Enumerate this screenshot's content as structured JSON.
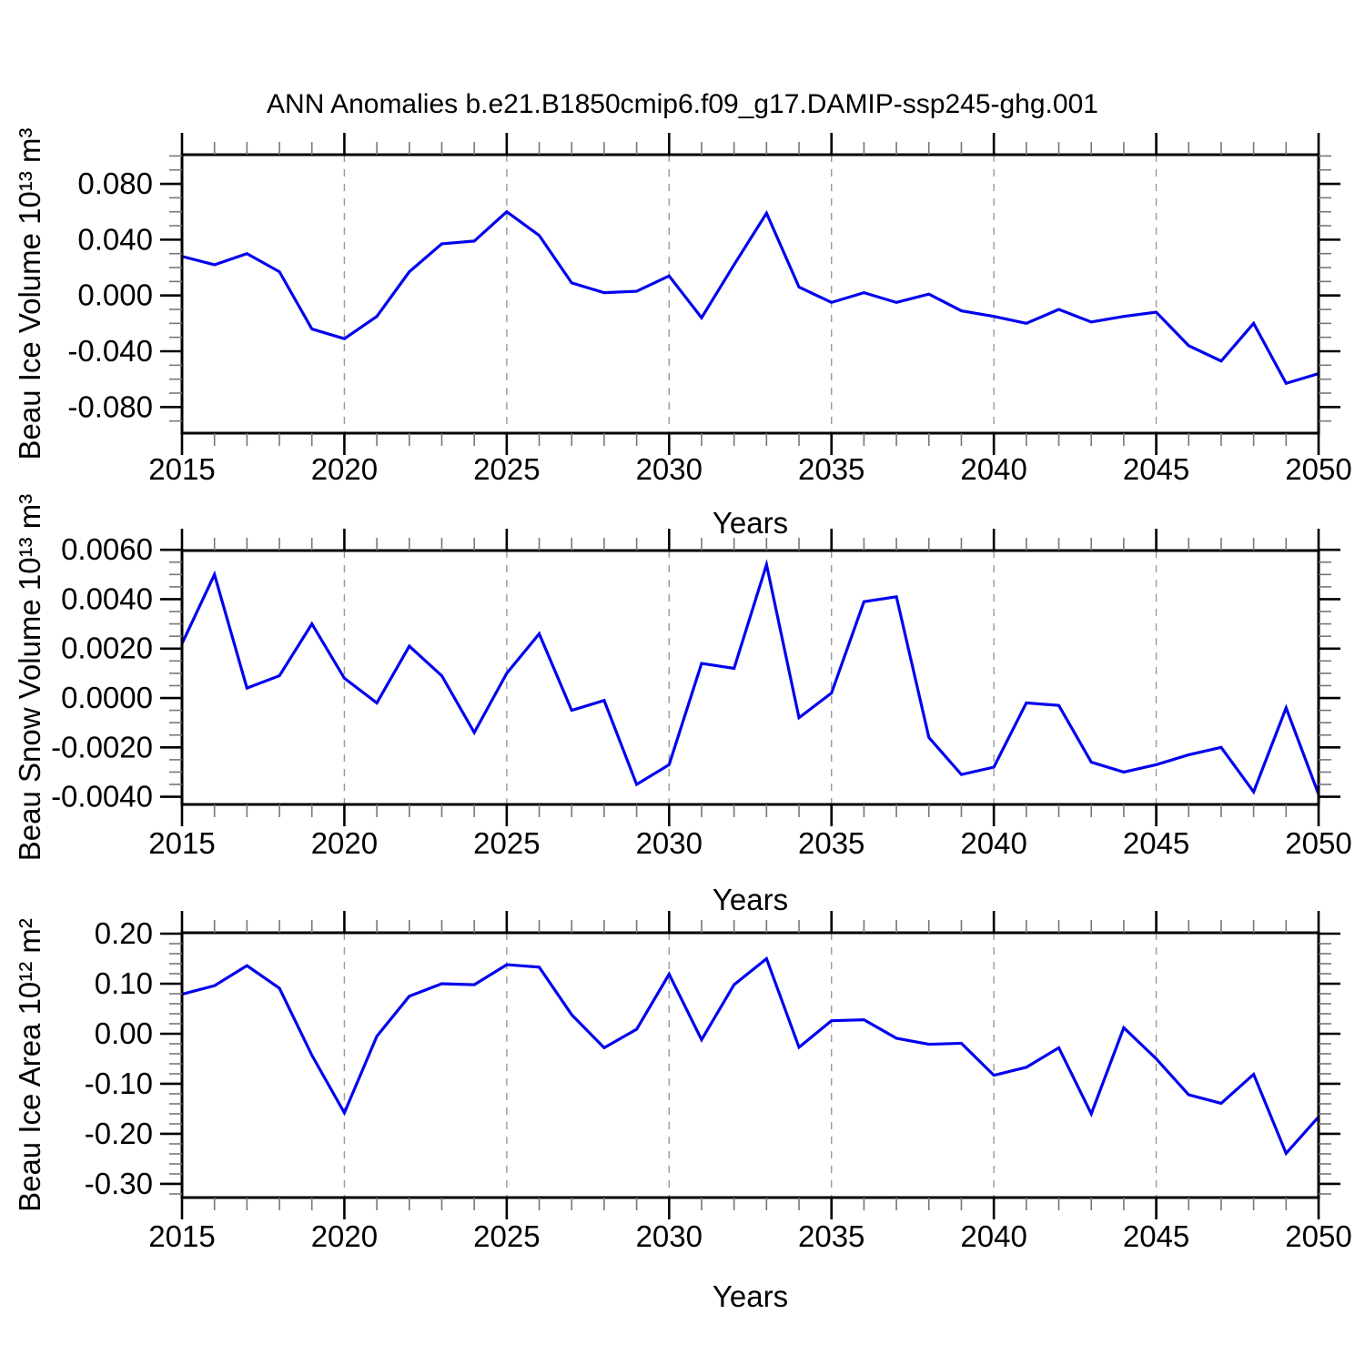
{
  "title": "ANN Anomalies b.e21.B1850cmip6.f09_g17.DAMIP-ssp245-ghg.001",
  "colors": {
    "line": "#0000EE",
    "grid_dash": "#999999",
    "axis": "#000000",
    "minor_tick": "#777777",
    "background": "#FFFFFF"
  },
  "chart_data": [
    {
      "type": "line",
      "name": "beau-ice-volume",
      "title": "",
      "ylabel": "Beau Ice Volume 10¹³ m³",
      "xlabel": "Years",
      "x_start": 2015,
      "x_step": 1,
      "x_end": 2050,
      "values": [
        0.028,
        0.022,
        0.03,
        0.017,
        -0.024,
        -0.031,
        -0.015,
        0.017,
        0.037,
        0.039,
        0.06,
        0.043,
        0.009,
        0.002,
        0.003,
        0.014,
        -0.016,
        0.022,
        0.059,
        0.006,
        -0.005,
        0.002,
        -0.005,
        0.001,
        -0.011,
        -0.015,
        -0.02,
        -0.01,
        -0.019,
        -0.015,
        -0.012,
        -0.036,
        -0.047,
        -0.02,
        -0.063,
        -0.056
      ],
      "xlim": [
        2015,
        2050
      ],
      "ylim": [
        -0.0987,
        0.1009
      ],
      "xticks": [
        2015,
        2020,
        2025,
        2030,
        2035,
        2040,
        2045,
        2050
      ],
      "xtick_labels": [
        "2015",
        "2020",
        "2025",
        "2030",
        "2035",
        "2040",
        "2045",
        "2050"
      ],
      "x_minor_step": 1,
      "yticks": [
        0.08,
        0.04,
        0.0,
        -0.04,
        -0.08
      ],
      "ytick_labels": [
        "0.080",
        "0.040",
        "0.000",
        "-0.040",
        "-0.080"
      ],
      "y_minor_step": 0.01,
      "dashed_gridlines_x": [
        2020,
        2025,
        2030,
        2035,
        2040,
        2045
      ],
      "legend": "none",
      "grid": "vertical-dashed-only"
    },
    {
      "type": "line",
      "name": "beau-snow-volume",
      "title": "",
      "ylabel": "Beau Snow Volume 10¹³ m³",
      "xlabel": "Years",
      "x_start": 2015,
      "x_step": 1,
      "x_end": 2050,
      "values": [
        0.0022,
        0.005,
        0.0004,
        0.0009,
        0.003,
        0.0008,
        -0.0002,
        0.0021,
        0.0009,
        -0.0014,
        0.001,
        0.0026,
        -0.0005,
        -0.0001,
        -0.0035,
        -0.0027,
        0.0014,
        0.0012,
        0.0054,
        -0.0008,
        0.0002,
        0.0039,
        0.0041,
        -0.0016,
        -0.0031,
        -0.0028,
        -0.0002,
        -0.0003,
        -0.0026,
        -0.003,
        -0.0027,
        -0.0023,
        -0.002,
        -0.0038,
        -0.0004,
        -0.0039
      ],
      "xlim": [
        2015,
        2050
      ],
      "ylim": [
        -0.00431,
        0.00597
      ],
      "xticks": [
        2015,
        2020,
        2025,
        2030,
        2035,
        2040,
        2045,
        2050
      ],
      "xtick_labels": [
        "2015",
        "2020",
        "2025",
        "2030",
        "2035",
        "2040",
        "2045",
        "2050"
      ],
      "x_minor_step": 1,
      "yticks": [
        0.006,
        0.004,
        0.002,
        0.0,
        -0.002,
        -0.004
      ],
      "ytick_labels": [
        "0.0060",
        "0.0040",
        "0.0020",
        "0.0000",
        "-0.0020",
        "-0.0040"
      ],
      "y_minor_step": 0.0005,
      "dashed_gridlines_x": [
        2020,
        2025,
        2030,
        2035,
        2040,
        2045
      ],
      "legend": "none",
      "grid": "vertical-dashed-only"
    },
    {
      "type": "line",
      "name": "beau-ice-area",
      "title": "",
      "ylabel": "Beau Ice Area 10¹² m²",
      "xlabel": "Years",
      "x_start": 2015,
      "x_step": 1,
      "x_end": 2050,
      "values": [
        0.079,
        0.096,
        0.136,
        0.091,
        -0.043,
        -0.158,
        -0.005,
        0.075,
        0.1,
        0.098,
        0.138,
        0.133,
        0.038,
        -0.028,
        0.009,
        0.119,
        -0.012,
        0.098,
        0.15,
        -0.027,
        0.026,
        0.028,
        -0.009,
        -0.021,
        -0.019,
        -0.083,
        -0.067,
        -0.028,
        -0.16,
        0.012,
        -0.05,
        -0.122,
        -0.139,
        -0.081,
        -0.239,
        -0.166
      ],
      "xlim": [
        2015,
        2050
      ],
      "ylim": [
        -0.3273,
        0.2018
      ],
      "xticks": [
        2015,
        2020,
        2025,
        2030,
        2035,
        2040,
        2045,
        2050
      ],
      "xtick_labels": [
        "2015",
        "2020",
        "2025",
        "2030",
        "2035",
        "2040",
        "2045",
        "2050"
      ],
      "x_minor_step": 1,
      "yticks": [
        0.2,
        0.1,
        0.0,
        -0.1,
        -0.2,
        -0.3
      ],
      "ytick_labels": [
        "0.20",
        "0.10",
        "0.00",
        "-0.10",
        "-0.20",
        "-0.30"
      ],
      "y_minor_step": 0.02,
      "dashed_gridlines_x": [
        2020,
        2025,
        2030,
        2035,
        2040,
        2045
      ],
      "legend": "none",
      "grid": "vertical-dashed-only"
    }
  ]
}
